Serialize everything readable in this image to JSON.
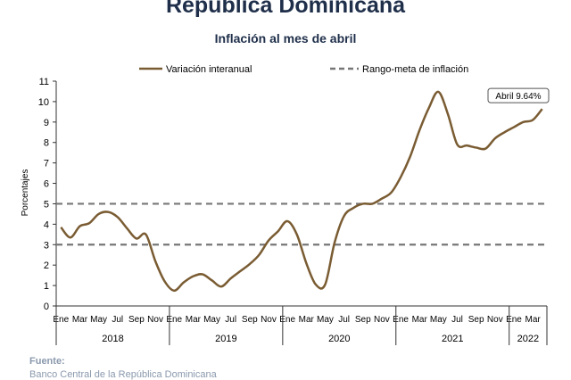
{
  "header": {
    "title": "República Dominicana",
    "subtitle": "Inflación al mes de abril"
  },
  "source": {
    "label": "Fuente:",
    "text": "Banco Central de la República Dominicana"
  },
  "colors": {
    "line": "#7a5c33",
    "target": "#777777",
    "axis": "#333333",
    "text": "#1f2f4a"
  },
  "chart_data": {
    "type": "line",
    "ylabel": "Porcentajes",
    "ylim": [
      0,
      11
    ],
    "yticks": [
      0,
      1,
      2,
      3,
      4,
      5,
      6,
      7,
      8,
      9,
      10,
      11
    ],
    "grid": false,
    "legend_position": "top",
    "month_labels": [
      "Ene",
      "Mar",
      "May",
      "Jul",
      "Sep",
      "Nov",
      "Ene",
      "Mar",
      "May",
      "Jul",
      "Sep",
      "Nov",
      "Ene",
      "Mar",
      "May",
      "Jul",
      "Sep",
      "Nov",
      "Ene",
      "Mar",
      "May",
      "Jul",
      "Sep",
      "Nov",
      "Ene",
      "Mar"
    ],
    "year_labels": [
      "2018",
      "2019",
      "2020",
      "2021",
      "2022"
    ],
    "series": [
      {
        "name": "Variación interanual",
        "style": "solid",
        "x": [
          "2018-01",
          "2018-02",
          "2018-03",
          "2018-04",
          "2018-05",
          "2018-06",
          "2018-07",
          "2018-08",
          "2018-09",
          "2018-10",
          "2018-11",
          "2018-12",
          "2019-01",
          "2019-02",
          "2019-03",
          "2019-04",
          "2019-05",
          "2019-06",
          "2019-07",
          "2019-08",
          "2019-09",
          "2019-10",
          "2019-11",
          "2019-12",
          "2020-01",
          "2020-02",
          "2020-03",
          "2020-04",
          "2020-05",
          "2020-06",
          "2020-07",
          "2020-08",
          "2020-09",
          "2020-10",
          "2020-11",
          "2020-12",
          "2021-01",
          "2021-02",
          "2021-03",
          "2021-04",
          "2021-05",
          "2021-06",
          "2021-07",
          "2021-08",
          "2021-09",
          "2021-10",
          "2021-11",
          "2021-12",
          "2022-01",
          "2022-02",
          "2022-03",
          "2022-04"
        ],
        "values": [
          3.85,
          3.35,
          3.9,
          4.05,
          4.5,
          4.6,
          4.35,
          3.8,
          3.3,
          3.5,
          2.2,
          1.2,
          0.75,
          1.15,
          1.45,
          1.55,
          1.25,
          0.95,
          1.35,
          1.7,
          2.05,
          2.5,
          3.2,
          3.65,
          4.15,
          3.5,
          2.1,
          1.05,
          1.05,
          3.1,
          4.4,
          4.8,
          5.0,
          5.0,
          5.25,
          5.55,
          6.3,
          7.3,
          8.6,
          9.7,
          10.48,
          9.4,
          7.9,
          7.85,
          7.75,
          7.7,
          8.2,
          8.5,
          8.75,
          9.0,
          9.1,
          9.64
        ]
      }
    ],
    "target_band": {
      "name": "Rango-meta de inflación",
      "style": "dashed",
      "lower": 3,
      "upper": 5
    },
    "annotation": {
      "text": "Abril 9.64%",
      "x": "2022-04",
      "y": 9.64
    }
  }
}
